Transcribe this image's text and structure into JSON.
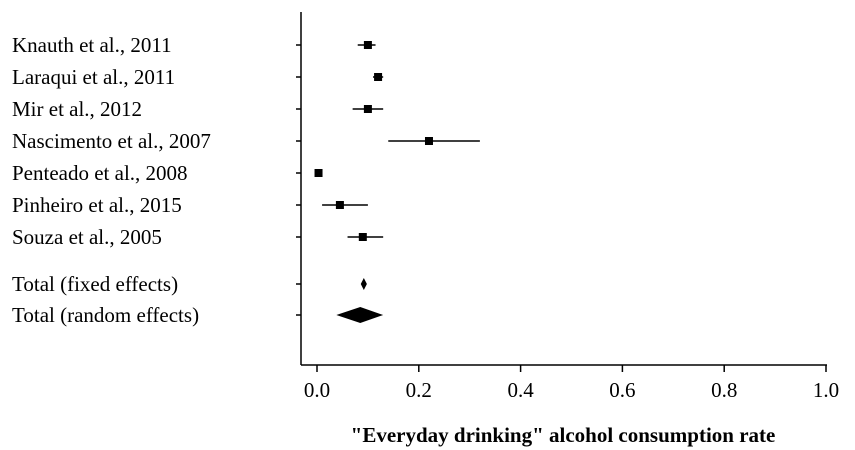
{
  "chart_data": {
    "type": "forest",
    "xlabel": "\"Everyday drinking\" alcohol consumption rate",
    "xlim": [
      0.0,
      1.0
    ],
    "xticks": [
      0.0,
      0.2,
      0.4,
      0.6,
      0.8,
      1.0
    ],
    "xtick_labels": [
      "0.0",
      "0.2",
      "0.4",
      "0.6",
      "0.8",
      "1.0"
    ],
    "studies": [
      {
        "label": "Knauth et al., 2011",
        "estimate": 0.1,
        "ci_low": 0.08,
        "ci_high": 0.115
      },
      {
        "label": "Laraqui et al., 2011",
        "estimate": 0.12,
        "ci_low": 0.11,
        "ci_high": 0.13
      },
      {
        "label": "Mir et al., 2012",
        "estimate": 0.1,
        "ci_low": 0.07,
        "ci_high": 0.13
      },
      {
        "label": "Nascimento et al., 2007",
        "estimate": 0.22,
        "ci_low": 0.14,
        "ci_high": 0.32
      },
      {
        "label": "Penteado et al., 2008",
        "estimate": 0.003,
        "ci_low": 0.0,
        "ci_high": 0.008
      },
      {
        "label": "Pinheiro et al., 2015",
        "estimate": 0.045,
        "ci_low": 0.01,
        "ci_high": 0.1
      },
      {
        "label": "Souza et al., 2005",
        "estimate": 0.09,
        "ci_low": 0.06,
        "ci_high": 0.13
      }
    ],
    "totals": [
      {
        "label": "Total (fixed effects)",
        "estimate": 0.092,
        "ci_low": 0.086,
        "ci_high": 0.098
      },
      {
        "label": "Total (random effects)",
        "estimate": 0.085,
        "ci_low": 0.038,
        "ci_high": 0.13
      }
    ]
  }
}
